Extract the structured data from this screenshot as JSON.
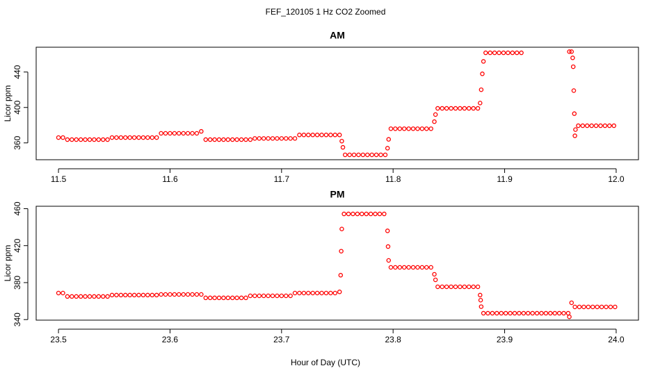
{
  "title": "FEF_120105  1 Hz CO2 Zoomed",
  "xlabel": "Hour of Day (UTC)",
  "chart_data": [
    {
      "type": "scatter",
      "title": "AM",
      "ylabel": "Licor ppm",
      "color": "#ff0000",
      "xlim": [
        11.48,
        12.02
      ],
      "ylim": [
        341,
        468
      ],
      "xticks": [
        11.5,
        11.6,
        11.7,
        11.8,
        11.9,
        {
          "value": 12,
          "label": "12.0"
        }
      ],
      "yticks": [
        360,
        400,
        440
      ],
      "x": [
        11.5,
        11.504,
        11.508,
        11.512,
        11.516,
        11.52,
        11.524,
        11.528,
        11.532,
        11.536,
        11.54,
        11.544,
        11.548,
        11.552,
        11.556,
        11.56,
        11.564,
        11.568,
        11.572,
        11.576,
        11.58,
        11.584,
        11.588,
        11.592,
        11.596,
        11.6,
        11.604,
        11.608,
        11.612,
        11.616,
        11.62,
        11.624,
        11.628,
        11.632,
        11.636,
        11.64,
        11.644,
        11.648,
        11.652,
        11.656,
        11.66,
        11.664,
        11.668,
        11.672,
        11.676,
        11.68,
        11.684,
        11.688,
        11.692,
        11.696,
        11.7,
        11.704,
        11.708,
        11.712,
        11.716,
        11.72,
        11.724,
        11.728,
        11.732,
        11.736,
        11.74,
        11.744,
        11.748,
        11.752,
        11.754,
        11.755,
        11.757,
        11.761,
        11.765,
        11.769,
        11.773,
        11.777,
        11.781,
        11.785,
        11.789,
        11.793,
        11.795,
        11.796,
        11.798,
        11.802,
        11.806,
        11.81,
        11.814,
        11.818,
        11.822,
        11.826,
        11.83,
        11.834,
        11.837,
        11.838,
        11.84,
        11.844,
        11.848,
        11.852,
        11.856,
        11.86,
        11.864,
        11.868,
        11.872,
        11.876,
        11.878,
        11.879,
        11.88,
        11.881,
        11.883,
        11.887,
        11.891,
        11.895,
        11.899,
        11.903,
        11.907,
        11.911,
        11.915,
        11.958,
        11.96,
        11.961,
        11.9615,
        11.962,
        11.9625,
        11.963,
        11.9635,
        11.966,
        11.97,
        11.974,
        11.978,
        11.982,
        11.986,
        11.99,
        11.994,
        11.998
      ],
      "values": [
        366,
        366,
        363.7,
        363.7,
        363.7,
        363.7,
        363.7,
        363.7,
        363.7,
        363.7,
        363.7,
        363.7,
        366,
        366,
        366,
        366,
        366,
        366,
        366,
        366,
        366,
        366,
        366,
        370.8,
        370.8,
        370.8,
        370.8,
        370.8,
        370.8,
        370.8,
        370.8,
        370.8,
        373,
        363.7,
        363.7,
        363.7,
        363.7,
        363.7,
        363.7,
        363.7,
        363.7,
        363.7,
        363.7,
        363.7,
        365,
        365,
        365,
        365,
        365,
        365,
        365,
        365,
        365,
        365,
        369,
        369,
        369,
        369,
        369,
        369,
        369,
        369,
        369,
        369,
        362,
        355,
        346.5,
        346.5,
        346.5,
        346.5,
        346.5,
        346.5,
        346.5,
        346.5,
        346.5,
        346.5,
        354,
        364,
        376,
        376,
        376,
        376,
        376,
        376,
        376,
        376,
        376,
        376,
        384,
        392,
        399,
        399,
        399,
        399,
        399,
        399,
        399,
        399,
        399,
        399,
        405,
        420,
        438,
        452,
        461.7,
        461.7,
        461.7,
        461.7,
        461.7,
        461.7,
        461.7,
        461.7,
        461.7,
        463,
        463,
        456,
        446,
        419,
        393,
        368,
        375,
        379.4,
        379.4,
        379.4,
        379.4,
        379.4,
        379.4,
        379.4,
        379.4,
        379.4
      ]
    },
    {
      "type": "scatter",
      "title": "PM",
      "ylabel": "Licor ppm",
      "color": "#ff0000",
      "xlim": [
        23.48,
        24.02
      ],
      "ylim": [
        339.4,
        462.6
      ],
      "xticks": [
        23.5,
        23.6,
        23.7,
        23.8,
        23.9,
        {
          "value": 24,
          "label": "24.0"
        }
      ],
      "yticks": [
        340,
        380,
        420,
        460
      ],
      "x": [
        23.5,
        23.504,
        23.508,
        23.512,
        23.516,
        23.52,
        23.524,
        23.528,
        23.532,
        23.536,
        23.54,
        23.544,
        23.548,
        23.552,
        23.556,
        23.56,
        23.564,
        23.568,
        23.572,
        23.576,
        23.58,
        23.584,
        23.588,
        23.592,
        23.596,
        23.6,
        23.604,
        23.608,
        23.612,
        23.616,
        23.62,
        23.624,
        23.628,
        23.632,
        23.636,
        23.64,
        23.644,
        23.648,
        23.652,
        23.656,
        23.66,
        23.664,
        23.668,
        23.672,
        23.676,
        23.68,
        23.684,
        23.688,
        23.692,
        23.696,
        23.7,
        23.704,
        23.708,
        23.712,
        23.716,
        23.72,
        23.724,
        23.728,
        23.732,
        23.736,
        23.74,
        23.744,
        23.748,
        23.752,
        23.753,
        23.7535,
        23.754,
        23.756,
        23.76,
        23.764,
        23.768,
        23.772,
        23.776,
        23.78,
        23.784,
        23.788,
        23.792,
        23.795,
        23.7955,
        23.796,
        23.798,
        23.802,
        23.806,
        23.81,
        23.814,
        23.818,
        23.822,
        23.826,
        23.83,
        23.834,
        23.837,
        23.838,
        23.84,
        23.844,
        23.848,
        23.852,
        23.856,
        23.86,
        23.864,
        23.868,
        23.872,
        23.876,
        23.878,
        23.8785,
        23.879,
        23.881,
        23.885,
        23.889,
        23.893,
        23.897,
        23.901,
        23.905,
        23.909,
        23.913,
        23.917,
        23.921,
        23.925,
        23.929,
        23.933,
        23.937,
        23.941,
        23.945,
        23.949,
        23.953,
        23.957,
        23.958,
        23.96,
        23.963,
        23.967,
        23.971,
        23.975,
        23.979,
        23.983,
        23.987,
        23.991,
        23.995,
        23.999
      ],
      "values": [
        368.7,
        368.7,
        365,
        365,
        365,
        365,
        365,
        365,
        365,
        365,
        365,
        365,
        366.5,
        366.5,
        366.5,
        366.5,
        366.5,
        366.5,
        366.5,
        366.5,
        366.5,
        366.5,
        366.5,
        367.2,
        367.2,
        367.2,
        367.2,
        367.2,
        367.2,
        367.2,
        367.2,
        367.2,
        367.2,
        363.5,
        363.5,
        363.5,
        363.5,
        363.5,
        363.5,
        363.5,
        363.5,
        363.5,
        363.5,
        365.7,
        365.7,
        365.7,
        365.7,
        365.7,
        365.7,
        365.7,
        365.7,
        365.7,
        365.7,
        368.7,
        368.7,
        368.7,
        368.7,
        368.7,
        368.7,
        368.7,
        368.7,
        368.7,
        368.7,
        370,
        388,
        414,
        438,
        454.3,
        454.3,
        454.3,
        454.3,
        454.3,
        454.3,
        454.3,
        454.3,
        454.3,
        454.3,
        436,
        419,
        404,
        396.5,
        396.5,
        396.5,
        396.5,
        396.5,
        396.5,
        396.5,
        396.5,
        396.5,
        396.5,
        389,
        383,
        375.5,
        375.5,
        375.5,
        375.5,
        375.5,
        375.5,
        375.5,
        375.5,
        375.5,
        375.5,
        366.5,
        361,
        354,
        346.9,
        346.9,
        346.9,
        346.9,
        346.9,
        346.9,
        346.9,
        346.9,
        346.9,
        346.9,
        346.9,
        346.9,
        346.9,
        346.9,
        346.9,
        346.9,
        346.9,
        346.9,
        346.9,
        346.9,
        343,
        358.2,
        353.7,
        353.7,
        353.7,
        353.7,
        353.7,
        353.7,
        353.7,
        353.7,
        353.7,
        353.7
      ]
    }
  ]
}
